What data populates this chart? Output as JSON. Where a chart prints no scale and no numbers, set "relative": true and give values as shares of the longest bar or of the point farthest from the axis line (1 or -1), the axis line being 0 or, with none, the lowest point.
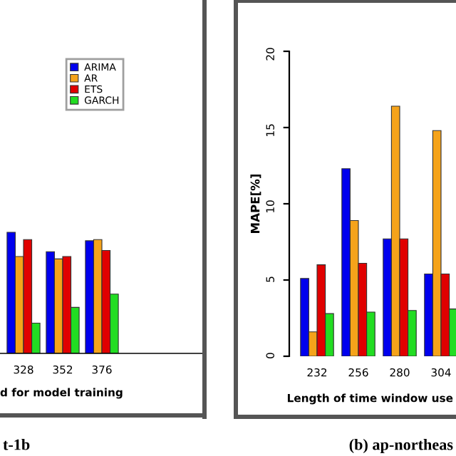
{
  "chart_data": [
    {
      "type": "bar",
      "relative": true,
      "categories": [
        "328",
        "352",
        "376"
      ],
      "xlabel": "d for model training",
      "legend": "top right",
      "tick_labels": "x",
      "annotations": [
        "t-1b"
      ],
      "series": [
        {
          "name": "ARIMA",
          "color": "#0000ee",
          "values": [
            1,
            0.84,
            0.93
          ]
        },
        {
          "name": "AR",
          "color": "#f5a31a",
          "values": [
            0.8,
            0.78,
            0.94
          ]
        },
        {
          "name": "ETS",
          "color": "#e00000",
          "values": [
            0.94,
            0.8,
            0.85
          ]
        },
        {
          "name": "GARCH",
          "color": "#22dd22",
          "values": [
            0.25,
            0.38,
            0.49
          ]
        }
      ]
    },
    {
      "type": "bar",
      "categories": [
        "232",
        "256",
        "280",
        "304"
      ],
      "xlabel": "Length of time window use",
      "ylabel": "MAPE[%]",
      "ylim": [
        0,
        20
      ],
      "yticks": [
        0,
        5,
        10,
        15,
        20
      ],
      "annotations": [
        "(b) ap-northeas"
      ],
      "series": [
        {
          "color": "#0000ee",
          "values": [
            5.1,
            12.3,
            7.7,
            5.4
          ]
        },
        {
          "color": "#f5a31a",
          "values": [
            1.6,
            8.9,
            16.4,
            14.8
          ]
        },
        {
          "color": "#e00000",
          "values": [
            6.0,
            6.1,
            7.7,
            5.4
          ]
        },
        {
          "color": "#22dd22",
          "values": [
            2.8,
            2.9,
            3.0,
            3.1
          ]
        }
      ]
    }
  ]
}
